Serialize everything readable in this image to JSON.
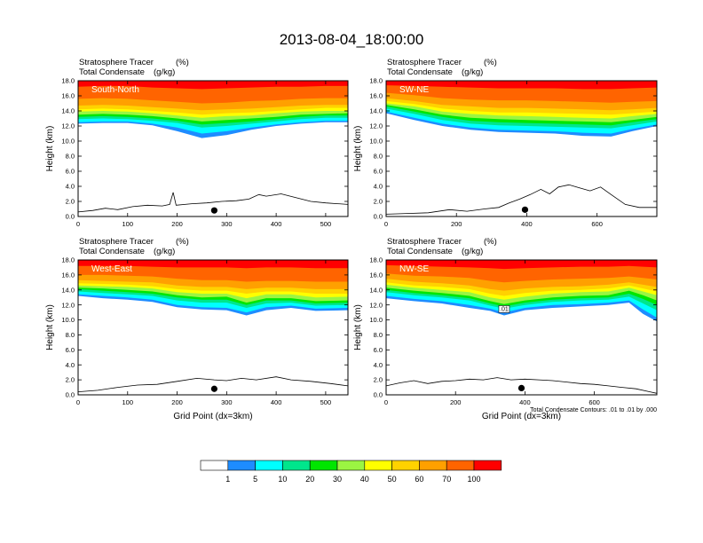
{
  "chart_data": {
    "type": "heatmap",
    "title": "2013-08-04_18:00:00",
    "variables": {
      "fill": "Stratosphere Tracer",
      "fill_units": "(%)",
      "contour": "Total Condensate",
      "contour_units": "(g/kg)"
    },
    "ylabel": "Height (km)",
    "xlabel": "Grid Point (dx=3km)",
    "ylim": [
      0,
      18
    ],
    "y_ticks": [
      "0.0",
      "2.0",
      "4.0",
      "6.0",
      "8.0",
      "10.0",
      "12.0",
      "14.0",
      "16.0",
      "18.0"
    ],
    "contour_note": "Total Condensate Contours: .01 to .01 by .000",
    "contour_label": ".01",
    "colorbar": {
      "levels": [
        "1",
        "5",
        "10",
        "20",
        "30",
        "40",
        "50",
        "60",
        "70",
        "100"
      ],
      "colors": [
        "#ffffff",
        "#1e8cff",
        "#00ffff",
        "#00e68c",
        "#00e600",
        "#9bf542",
        "#ffff00",
        "#ffd200",
        "#ffa000",
        "#ff6400",
        "#ff0000"
      ]
    },
    "panels": [
      {
        "name": "South-North",
        "xlim": [
          0,
          545
        ],
        "x_ticks": [
          "0",
          "100",
          "200",
          "300",
          "400",
          "500"
        ],
        "bands": [
          [
            0,
            12.3,
            12.5,
            12.9,
            13.2,
            13.5,
            13.9,
            14.2,
            14.7,
            15.6,
            17.2
          ],
          [
            50,
            12.4,
            12.6,
            13.0,
            13.3,
            13.6,
            14.0,
            14.3,
            14.8,
            15.7,
            17.3
          ],
          [
            100,
            12.4,
            12.6,
            12.9,
            13.2,
            13.5,
            13.9,
            14.2,
            14.7,
            15.6,
            17.3
          ],
          [
            150,
            12.1,
            12.3,
            12.7,
            13.0,
            13.3,
            13.7,
            14.0,
            14.5,
            15.4,
            17.1
          ],
          [
            200,
            11.3,
            11.8,
            12.4,
            12.7,
            13.0,
            13.4,
            13.8,
            14.3,
            15.2,
            17.0
          ],
          [
            250,
            10.4,
            11.0,
            11.8,
            12.2,
            12.6,
            13.1,
            13.5,
            14.1,
            15.0,
            16.9
          ],
          [
            300,
            10.8,
            11.3,
            12.0,
            12.4,
            12.8,
            13.3,
            13.7,
            14.2,
            15.1,
            17.0
          ],
          [
            350,
            11.5,
            11.8,
            12.3,
            12.6,
            13.0,
            13.4,
            13.8,
            14.3,
            15.3,
            17.1
          ],
          [
            400,
            12.0,
            12.2,
            12.6,
            12.9,
            13.2,
            13.7,
            14.0,
            14.5,
            15.4,
            17.2
          ],
          [
            450,
            12.3,
            12.5,
            12.9,
            13.2,
            13.5,
            13.9,
            14.2,
            14.7,
            15.6,
            17.2
          ],
          [
            500,
            12.5,
            12.7,
            13.1,
            13.4,
            13.6,
            14.0,
            14.4,
            14.8,
            15.7,
            17.3
          ],
          [
            545,
            12.5,
            12.7,
            13.1,
            13.4,
            13.7,
            14.0,
            14.4,
            14.8,
            15.7,
            17.3
          ]
        ],
        "terrain": [
          [
            0,
            0.6
          ],
          [
            30,
            0.8
          ],
          [
            55,
            1.1
          ],
          [
            80,
            0.9
          ],
          [
            110,
            1.3
          ],
          [
            140,
            1.5
          ],
          [
            170,
            1.4
          ],
          [
            185,
            1.6
          ],
          [
            192,
            3.2
          ],
          [
            198,
            1.5
          ],
          [
            230,
            1.7
          ],
          [
            260,
            1.8
          ],
          [
            290,
            2.0
          ],
          [
            320,
            2.1
          ],
          [
            345,
            2.3
          ],
          [
            365,
            2.9
          ],
          [
            380,
            2.7
          ],
          [
            410,
            3.0
          ],
          [
            440,
            2.5
          ],
          [
            470,
            2.0
          ],
          [
            500,
            1.8
          ],
          [
            545,
            1.6
          ]
        ],
        "marker": [
          275,
          0.8
        ]
      },
      {
        "name": "SW-NE",
        "xlim": [
          0,
          770
        ],
        "x_ticks": [
          "0",
          "200",
          "400",
          "600"
        ],
        "bands": [
          [
            0,
            13.7,
            13.9,
            14.3,
            14.6,
            14.8,
            15.0,
            15.3,
            15.7,
            16.4,
            17.4
          ],
          [
            80,
            12.8,
            13.1,
            13.6,
            13.9,
            14.2,
            14.6,
            14.9,
            15.3,
            16.1,
            17.3
          ],
          [
            160,
            12.0,
            12.3,
            12.8,
            13.2,
            13.5,
            13.9,
            14.3,
            14.8,
            15.7,
            17.2
          ],
          [
            240,
            11.5,
            11.8,
            12.3,
            12.7,
            13.1,
            13.6,
            14.0,
            14.6,
            15.5,
            17.1
          ],
          [
            320,
            11.2,
            11.5,
            12.1,
            12.5,
            12.9,
            13.4,
            13.8,
            14.4,
            15.4,
            17.0
          ],
          [
            400,
            11.1,
            11.4,
            12.0,
            12.4,
            12.8,
            13.3,
            13.8,
            14.4,
            15.4,
            17.0
          ],
          [
            480,
            11.0,
            11.3,
            11.9,
            12.3,
            12.7,
            13.2,
            13.7,
            14.3,
            15.3,
            17.0
          ],
          [
            560,
            10.7,
            11.1,
            11.8,
            12.2,
            12.6,
            13.1,
            13.6,
            14.2,
            15.2,
            16.9
          ],
          [
            640,
            10.6,
            11.0,
            11.7,
            12.1,
            12.5,
            13.0,
            13.5,
            14.1,
            15.1,
            16.9
          ],
          [
            700,
            11.3,
            11.6,
            12.1,
            12.5,
            12.8,
            13.3,
            13.7,
            14.2,
            15.2,
            17.0
          ],
          [
            770,
            12.0,
            12.2,
            12.6,
            12.9,
            13.2,
            13.6,
            13.9,
            14.4,
            15.3,
            17.1
          ]
        ],
        "terrain": [
          [
            0,
            0.3
          ],
          [
            60,
            0.4
          ],
          [
            120,
            0.5
          ],
          [
            180,
            0.9
          ],
          [
            230,
            0.7
          ],
          [
            280,
            1.0
          ],
          [
            320,
            1.2
          ],
          [
            350,
            1.8
          ],
          [
            380,
            2.3
          ],
          [
            410,
            2.9
          ],
          [
            440,
            3.6
          ],
          [
            465,
            3.0
          ],
          [
            490,
            3.9
          ],
          [
            520,
            4.2
          ],
          [
            550,
            3.8
          ],
          [
            580,
            3.4
          ],
          [
            610,
            3.9
          ],
          [
            640,
            2.9
          ],
          [
            680,
            1.6
          ],
          [
            720,
            1.2
          ],
          [
            770,
            1.2
          ]
        ],
        "marker": [
          395,
          0.9
        ]
      },
      {
        "name": "West-East",
        "xlim": [
          0,
          545
        ],
        "x_ticks": [
          "0",
          "100",
          "200",
          "300",
          "400",
          "500"
        ],
        "bands": [
          [
            0,
            13.2,
            13.4,
            13.8,
            14.1,
            14.3,
            14.6,
            14.9,
            15.3,
            16.0,
            17.2
          ],
          [
            50,
            12.9,
            13.2,
            13.6,
            13.9,
            14.2,
            14.5,
            14.8,
            15.2,
            16.0,
            17.2
          ],
          [
            100,
            12.7,
            13.0,
            13.4,
            13.7,
            14.0,
            14.4,
            14.7,
            15.1,
            15.9,
            17.2
          ],
          [
            150,
            12.4,
            12.7,
            13.2,
            13.5,
            13.8,
            14.2,
            14.5,
            15.0,
            15.8,
            17.1
          ],
          [
            200,
            11.7,
            12.0,
            12.6,
            13.0,
            13.3,
            13.7,
            14.1,
            14.6,
            15.5,
            17.0
          ],
          [
            250,
            11.4,
            11.7,
            12.3,
            12.7,
            13.0,
            13.5,
            13.9,
            14.4,
            15.3,
            17.0
          ],
          [
            300,
            11.3,
            11.6,
            12.3,
            12.7,
            13.1,
            13.5,
            13.9,
            14.4,
            15.3,
            17.0
          ],
          [
            340,
            10.6,
            11.0,
            11.6,
            12.0,
            12.3,
            12.9,
            13.5,
            14.1,
            15.1,
            16.9
          ],
          [
            380,
            11.3,
            11.7,
            12.2,
            12.6,
            12.9,
            13.4,
            13.8,
            14.3,
            15.2,
            17.0
          ],
          [
            430,
            11.6,
            11.9,
            12.3,
            12.6,
            12.9,
            13.4,
            13.8,
            14.3,
            15.2,
            17.0
          ],
          [
            480,
            11.2,
            11.5,
            11.9,
            12.2,
            12.5,
            13.0,
            13.5,
            14.1,
            15.1,
            16.9
          ],
          [
            545,
            11.3,
            11.6,
            12.0,
            12.3,
            12.6,
            13.1,
            13.5,
            14.1,
            15.1,
            16.9
          ]
        ],
        "terrain": [
          [
            0,
            0.4
          ],
          [
            40,
            0.6
          ],
          [
            80,
            1.0
          ],
          [
            120,
            1.3
          ],
          [
            160,
            1.4
          ],
          [
            200,
            1.8
          ],
          [
            240,
            2.2
          ],
          [
            275,
            2.0
          ],
          [
            300,
            1.9
          ],
          [
            330,
            2.2
          ],
          [
            360,
            2.0
          ],
          [
            400,
            2.4
          ],
          [
            430,
            2.0
          ],
          [
            470,
            1.8
          ],
          [
            510,
            1.5
          ],
          [
            545,
            1.2
          ]
        ],
        "marker": [
          275,
          0.8
        ]
      },
      {
        "name": "NW-SE",
        "xlim": [
          0,
          780
        ],
        "x_ticks": [
          "0",
          "200",
          "400",
          "600"
        ],
        "bands": [
          [
            0,
            12.9,
            13.2,
            13.7,
            14.0,
            14.3,
            14.7,
            15.0,
            15.5,
            16.2,
            17.3
          ],
          [
            80,
            12.5,
            12.8,
            13.3,
            13.6,
            13.9,
            14.3,
            14.6,
            15.1,
            15.9,
            17.2
          ],
          [
            160,
            12.2,
            12.5,
            13.0,
            13.3,
            13.6,
            14.0,
            14.4,
            14.9,
            15.8,
            17.1
          ],
          [
            240,
            11.6,
            12.0,
            12.6,
            12.9,
            13.2,
            13.7,
            14.1,
            14.6,
            15.6,
            17.0
          ],
          [
            300,
            11.2,
            11.5,
            11.9,
            12.2,
            12.5,
            13.0,
            13.5,
            14.1,
            15.2,
            16.9
          ],
          [
            340,
            10.6,
            11.0,
            11.5,
            11.8,
            12.1,
            12.7,
            13.2,
            13.9,
            15.0,
            16.8
          ],
          [
            400,
            11.3,
            11.6,
            12.0,
            12.3,
            12.6,
            13.1,
            13.6,
            14.2,
            15.2,
            16.9
          ],
          [
            480,
            11.6,
            12.0,
            12.4,
            12.7,
            13.0,
            13.5,
            13.9,
            14.4,
            15.4,
            17.0
          ],
          [
            560,
            11.8,
            12.1,
            12.6,
            12.9,
            13.2,
            13.7,
            14.0,
            14.5,
            15.5,
            17.1
          ],
          [
            640,
            12.0,
            12.3,
            12.7,
            13.0,
            13.3,
            13.8,
            14.2,
            14.7,
            15.6,
            17.1
          ],
          [
            700,
            12.3,
            12.6,
            13.1,
            13.5,
            13.9,
            14.3,
            14.6,
            15.0,
            15.8,
            17.2
          ],
          [
            740,
            10.8,
            11.4,
            12.2,
            12.8,
            13.3,
            13.8,
            14.2,
            14.7,
            15.6,
            17.1
          ],
          [
            780,
            9.8,
            10.3,
            11.3,
            12.0,
            12.6,
            13.3,
            13.8,
            14.4,
            15.4,
            17.0
          ]
        ],
        "terrain": [
          [
            0,
            1.2
          ],
          [
            40,
            1.6
          ],
          [
            80,
            1.9
          ],
          [
            120,
            1.5
          ],
          [
            160,
            1.8
          ],
          [
            200,
            1.9
          ],
          [
            240,
            2.1
          ],
          [
            280,
            2.0
          ],
          [
            320,
            2.3
          ],
          [
            360,
            2.0
          ],
          [
            400,
            2.1
          ],
          [
            440,
            2.0
          ],
          [
            480,
            1.9
          ],
          [
            520,
            1.7
          ],
          [
            560,
            1.5
          ],
          [
            600,
            1.4
          ],
          [
            640,
            1.2
          ],
          [
            680,
            1.0
          ],
          [
            720,
            0.8
          ],
          [
            760,
            0.4
          ],
          [
            780,
            0.2
          ]
        ],
        "marker": [
          390,
          0.9
        ]
      }
    ]
  }
}
